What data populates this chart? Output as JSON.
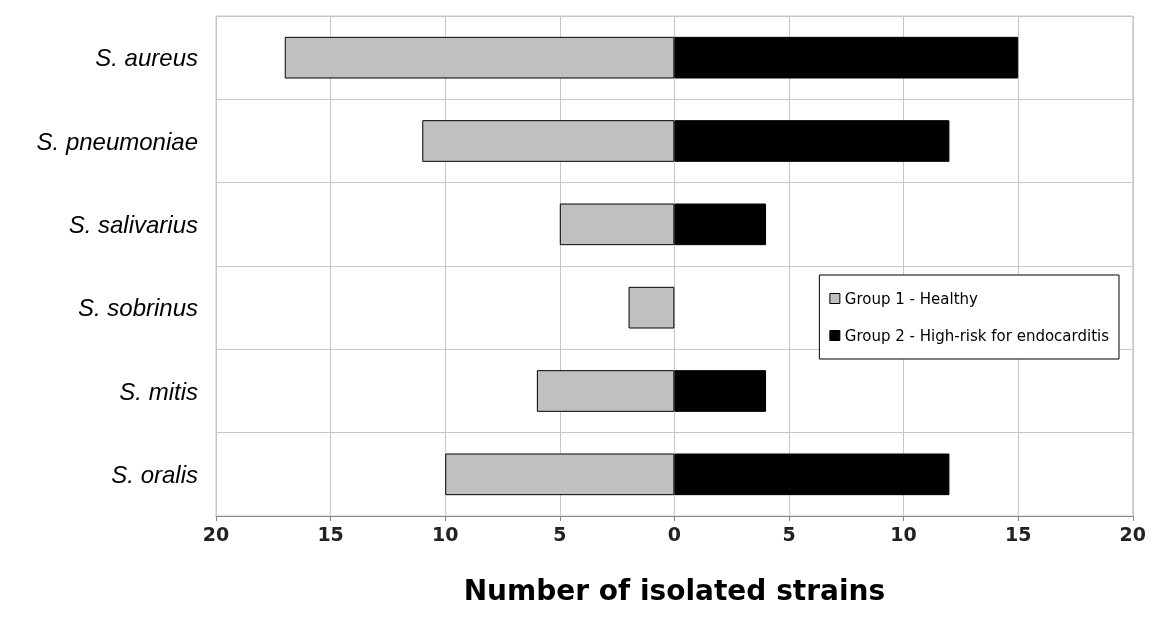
{
  "chart_data": {
    "type": "bar",
    "orientation": "horizontal",
    "xlabel": "Number of isolated strains",
    "categories": [
      "S. aureus",
      "S. pneumoniae",
      "S. salivarius",
      "S. sobrinus",
      "S. mitis",
      "S. oralis"
    ],
    "series": [
      {
        "name": "Group 1 - Healthy",
        "color": "#c0c0c0",
        "values": [
          -17,
          -11,
          -5,
          -2,
          -6,
          -10
        ]
      },
      {
        "name": "Group 2 - High-risk for endocarditis",
        "color": "#000000",
        "values": [
          15,
          12,
          4,
          null,
          4,
          12
        ]
      }
    ],
    "xlim": [
      -20,
      20
    ],
    "xticks": [
      {
        "value": -20,
        "label": "20"
      },
      {
        "value": -15,
        "label": "15"
      },
      {
        "value": -10,
        "label": "10"
      },
      {
        "value": -5,
        "label": "5"
      },
      0,
      5,
      10,
      15,
      20
    ],
    "grid": true,
    "legend": "right",
    "stacked": true
  }
}
